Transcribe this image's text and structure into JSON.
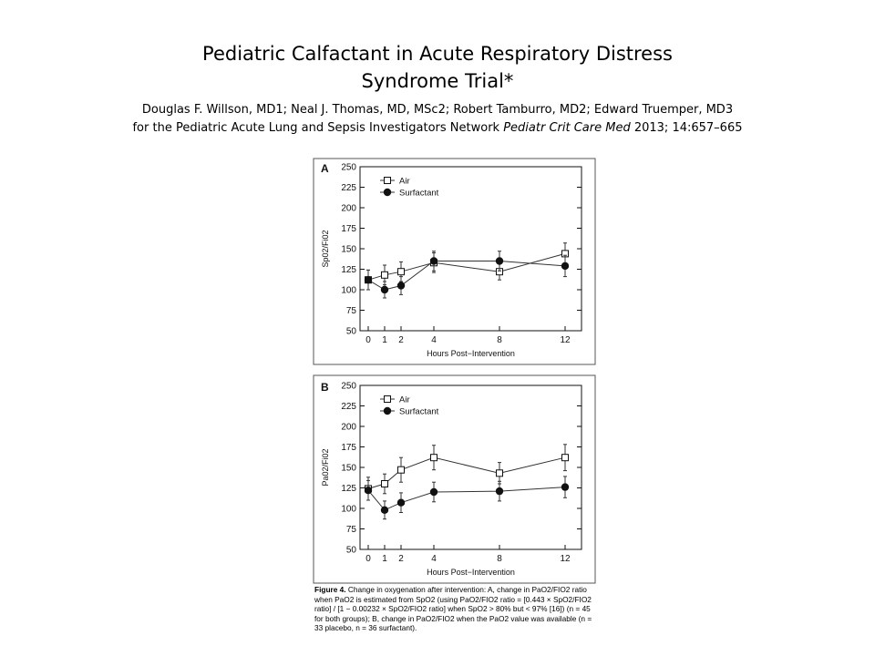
{
  "slide": {
    "title_line1": "Pediatric Calfactant in Acute Respiratory Distress",
    "title_line2": "Syndrome Trial*",
    "authors": "Douglas F. Willson, MD1; Neal J. Thomas, MD, MSc2; Robert Tamburro, MD2; Edward Truemper, MD3",
    "network": "for the Pediatric Acute Lung and Sepsis Investigators Network ",
    "journal": "Pediatr Crit Care Med",
    "journal_ref": " 2013; 14:657–665"
  },
  "figure": {
    "caption_label": "Figure 4.",
    "caption_text": "Change in oxygenation after intervention: A, change in PaO2/FIO2 ratio when PaO2 is estimated from SpO2 (using PaO2/FIO2 ratio = [0.443 × SpO2/FIO2 ratio] / [1 − 0.00232 × SpO2/FIO2 ratio] when SpO2 > 80% but < 97% [16]) (n = 45 for both groups); B, change in PaO2/FIO2 when the PaO2 value was available (n = 33 placebo, n = 36 surfactant)."
  },
  "chart_data": [
    {
      "type": "line",
      "panel": "A",
      "ylabel": "Sp02/Fi02",
      "xlabel": "Hours Post−Intervention",
      "x": [
        0,
        1,
        2,
        4,
        8,
        12
      ],
      "xlim": [
        -0.5,
        13
      ],
      "ylim": [
        50,
        250
      ],
      "yticks": [
        50,
        75,
        100,
        125,
        150,
        175,
        200,
        225,
        250
      ],
      "grid": false,
      "legend": "top-left",
      "series": [
        {
          "name": "Air",
          "marker": "open-square",
          "values": [
            112,
            118,
            122,
            133,
            122,
            144
          ],
          "err": [
            12,
            12,
            12,
            12,
            10,
            13
          ]
        },
        {
          "name": "Surfactant",
          "marker": "filled-circle",
          "values": [
            112,
            100,
            105,
            135,
            135,
            129
          ],
          "err": [
            12,
            10,
            11,
            12,
            12,
            13
          ]
        }
      ]
    },
    {
      "type": "line",
      "panel": "B",
      "ylabel": "Pa02/Fi02",
      "xlabel": "Hours Post−Intervention",
      "x": [
        0,
        1,
        2,
        4,
        8,
        12
      ],
      "xlim": [
        -0.5,
        13
      ],
      "ylim": [
        50,
        250
      ],
      "yticks": [
        50,
        75,
        100,
        125,
        150,
        175,
        200,
        225,
        250
      ],
      "grid": false,
      "legend": "top-left",
      "series": [
        {
          "name": "Air",
          "marker": "open-square",
          "values": [
            124,
            130,
            147,
            162,
            143,
            162
          ],
          "err": [
            14,
            12,
            15,
            15,
            13,
            16
          ]
        },
        {
          "name": "Surfactant",
          "marker": "filled-circle",
          "values": [
            122,
            98,
            107,
            120,
            121,
            126
          ],
          "err": [
            12,
            11,
            12,
            12,
            12,
            13
          ]
        }
      ]
    }
  ]
}
